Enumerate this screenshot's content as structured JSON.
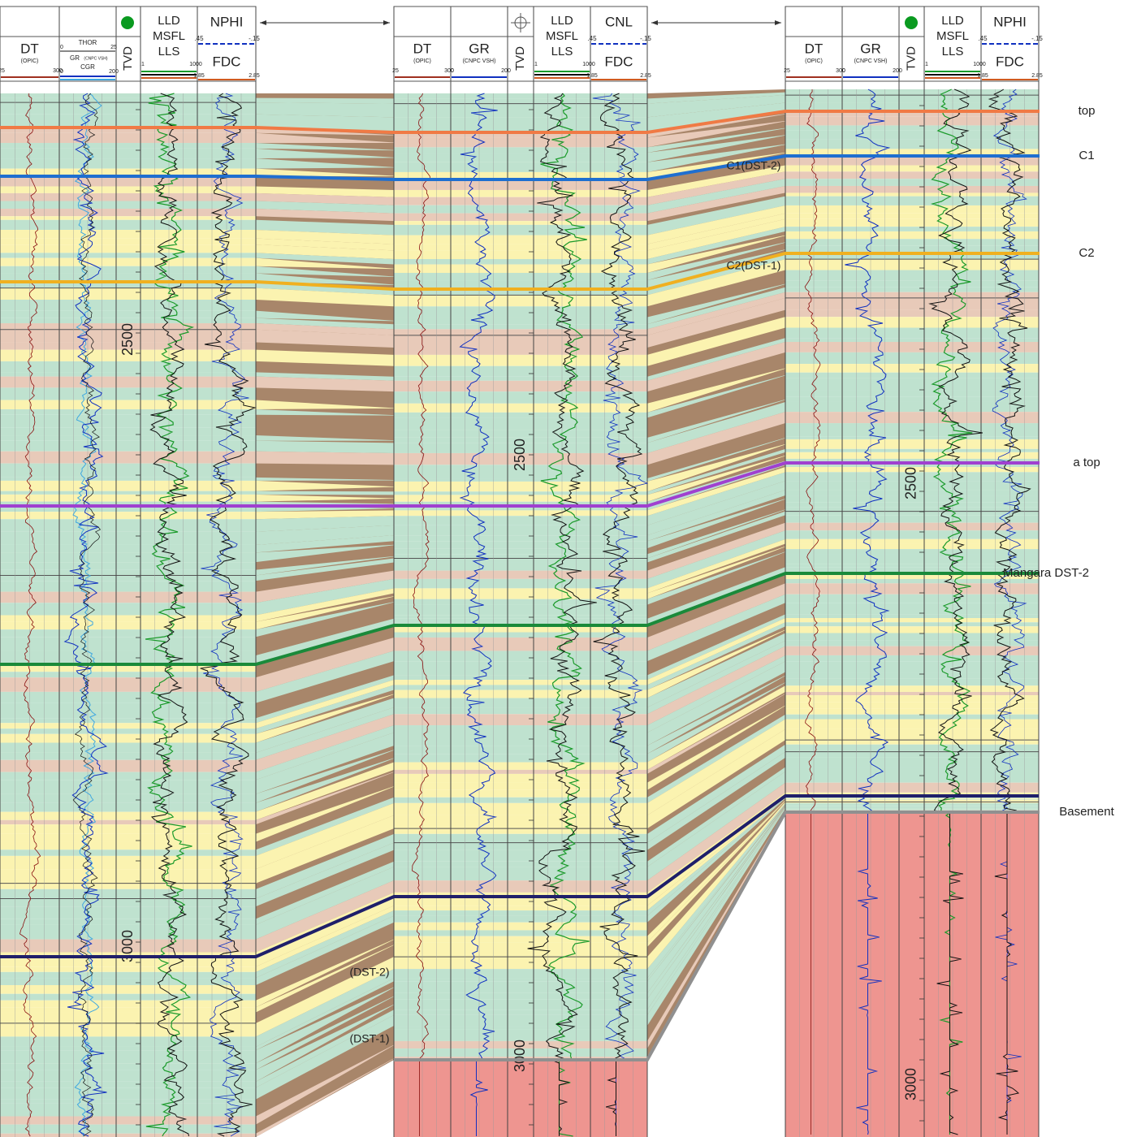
{
  "wells": [
    {
      "tracks": [
        {
          "title": "DT",
          "sub": "(OPIC)",
          "left": "25",
          "right": "300"
        },
        {
          "upper": "THOR",
          "upper_left": "0",
          "upper_right": "25",
          "title": "GR",
          "sub": "(CNPC VSH)",
          "lower": "CGR",
          "left": "0",
          "right": "200"
        },
        {
          "title": "TVD"
        },
        {
          "lines": [
            "LLD",
            "MSFL",
            "LLS"
          ],
          "left": ".1",
          "right": "1000"
        },
        {
          "title": "NPHI",
          "upper_left": ".45",
          "upper_right": "-.15",
          "lower": "FDC",
          "left": "1.85",
          "right": "2.85"
        }
      ],
      "depths": [
        "2500",
        "3000"
      ]
    },
    {
      "tracks": [
        {
          "title": "DT",
          "sub": "(OPIC)",
          "left": "25",
          "right": "300"
        },
        {
          "title": "GR",
          "sub": "(CNPC VSH)",
          "left": "0",
          "right": "200"
        },
        {
          "title": "TVD"
        },
        {
          "lines": [
            "LLD",
            "MSFL",
            "LLS"
          ],
          "left": ".1",
          "right": "1000"
        },
        {
          "title": "CNL",
          "upper_left": ".45",
          "upper_right": "-.15",
          "lower": "FDC",
          "left": "1.85",
          "right": "2.85"
        }
      ],
      "depths": [
        "2500",
        "3000"
      ]
    },
    {
      "tracks": [
        {
          "title": "DT",
          "sub": "(OPIC)",
          "left": "25",
          "right": "300"
        },
        {
          "title": "GR",
          "sub": "(CNPC VSH)",
          "left": "0",
          "right": "200"
        },
        {
          "title": "TVD"
        },
        {
          "lines": [
            "LLD",
            "MSFL",
            "LLS"
          ],
          "left": ".1",
          "right": "1000"
        },
        {
          "title": "NPHI",
          "upper_left": ".45",
          "upper_right": "-.15",
          "lower": "FDC",
          "left": "1.85",
          "right": "2.85"
        }
      ],
      "depths": [
        "2500",
        "3000"
      ]
    }
  ],
  "horizons": [
    {
      "label": "top",
      "color": "#f07a45"
    },
    {
      "label": "C1",
      "color": "#1f6fd0"
    },
    {
      "label": "C2",
      "color": "#f0b020"
    },
    {
      "label": "a top",
      "color": "#a040d0"
    },
    {
      "label": "Mangara DST-2",
      "color": "#1a8a3a"
    },
    {
      "label": "Basement",
      "color": "#909090"
    }
  ],
  "annotations": [
    "C1(DST-2)",
    "C2(DST-1)",
    "(DST-2)",
    "(DST-1)"
  ]
}
